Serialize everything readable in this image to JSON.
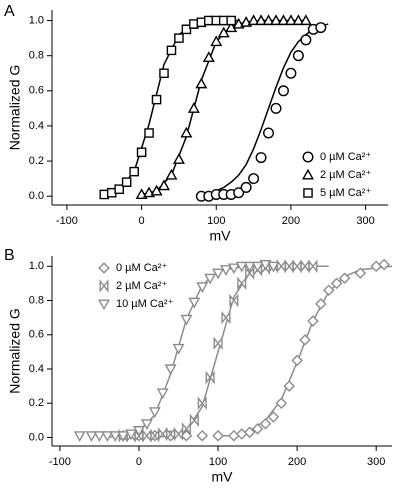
{
  "chart_data": [
    {
      "type": "scatter",
      "panel": "A",
      "xlabel": "mV",
      "ylabel": "Normalized G",
      "xlim": [
        -120,
        330
      ],
      "xticks": [
        -100,
        0,
        100,
        200,
        300
      ],
      "ylim": [
        -0.05,
        1.06
      ],
      "yticks": [
        {
          "value": 0,
          "label": "0.0"
        },
        {
          "value": 0.2,
          "label": "0.2"
        },
        {
          "value": 0.4,
          "label": "0.4"
        },
        {
          "value": 0.6,
          "label": "0.6"
        },
        {
          "value": 0.8,
          "label": "0.8"
        },
        {
          "value": 1,
          "label": "1.0"
        }
      ],
      "legend": "lower right",
      "series": [
        {
          "name": "0 µM Ca²⁺",
          "marker": "circle",
          "color": "#000000",
          "x": [
            80,
            90,
            100,
            110,
            120,
            130,
            140,
            150,
            160,
            170,
            180,
            190,
            200,
            210,
            220,
            230,
            240
          ],
          "values": [
            0.0,
            0.0,
            0.01,
            0.01,
            0.01,
            0.02,
            0.05,
            0.1,
            0.22,
            0.36,
            0.5,
            0.6,
            0.7,
            0.8,
            0.89,
            0.95,
            0.96
          ]
        },
        {
          "name": "2 µM Ca²⁺",
          "marker": "triangle",
          "color": "#000000",
          "x": [
            0,
            10,
            20,
            30,
            40,
            50,
            60,
            70,
            80,
            90,
            100,
            110,
            120,
            130,
            140,
            150,
            160,
            170,
            180,
            190,
            200,
            210,
            220
          ],
          "values": [
            0.01,
            0.02,
            0.03,
            0.06,
            0.12,
            0.21,
            0.36,
            0.5,
            0.64,
            0.79,
            0.88,
            0.93,
            0.96,
            0.98,
            0.99,
            1.0,
            1.0,
            1.0,
            1.0,
            1.0,
            1.0,
            1.0,
            1.0
          ]
        },
        {
          "name": "5 µM Ca²⁺",
          "marker": "square",
          "color": "#000000",
          "x": [
            -50,
            -40,
            -30,
            -20,
            -10,
            0,
            10,
            20,
            30,
            40,
            50,
            60,
            70,
            80,
            90,
            100,
            110,
            120
          ],
          "values": [
            0.01,
            0.02,
            0.04,
            0.08,
            0.14,
            0.25,
            0.36,
            0.55,
            0.7,
            0.83,
            0.9,
            0.95,
            0.98,
            0.99,
            1.0,
            1.0,
            1.0,
            1.0
          ]
        }
      ],
      "fits": [
        {
          "color": "#000000",
          "x": [
            100,
            110,
            120,
            130,
            140,
            150,
            160,
            170,
            180,
            190,
            200,
            210,
            220,
            230,
            240,
            250
          ],
          "values": [
            0.03,
            0.05,
            0.08,
            0.12,
            0.18,
            0.27,
            0.38,
            0.5,
            0.62,
            0.73,
            0.82,
            0.88,
            0.92,
            0.95,
            0.97,
            0.98
          ]
        },
        {
          "color": "#000000",
          "x": [
            0,
            20,
            40,
            60,
            80,
            100,
            120,
            140,
            160,
            180,
            200,
            220
          ],
          "values": [
            0.01,
            0.03,
            0.12,
            0.34,
            0.66,
            0.88,
            0.97,
            0.99,
            1.0,
            1.0,
            1.0,
            1.0
          ]
        },
        {
          "color": "#000000",
          "x": [
            -50,
            -30,
            -10,
            10,
            30,
            50,
            70,
            90,
            110,
            130
          ],
          "values": [
            0.01,
            0.04,
            0.14,
            0.41,
            0.75,
            0.92,
            0.98,
            1.0,
            1.0,
            1.0
          ]
        }
      ]
    },
    {
      "type": "scatter",
      "panel": "B",
      "xlabel": "mV",
      "ylabel": "Normalized G",
      "xlim": [
        -110,
        320
      ],
      "xticks": [
        -100,
        0,
        100,
        200,
        300
      ],
      "ylim": [
        -0.05,
        1.06
      ],
      "yticks": [
        {
          "value": 0,
          "label": "0.0"
        },
        {
          "value": 0.2,
          "label": "0.2"
        },
        {
          "value": 0.4,
          "label": "0.4"
        },
        {
          "value": 0.6,
          "label": "0.6"
        },
        {
          "value": 0.8,
          "label": "0.8"
        },
        {
          "value": 1,
          "label": "1.0"
        }
      ],
      "legend": "upper left",
      "series": [
        {
          "name": "0 µM Ca²⁺",
          "marker": "diamond",
          "color": "#8c8c8c",
          "x": [
            -20,
            0,
            20,
            40,
            60,
            80,
            100,
            120,
            130,
            140,
            150,
            160,
            170,
            180,
            190,
            200,
            210,
            220,
            230,
            240,
            250,
            260,
            280,
            300,
            310
          ],
          "values": [
            0.01,
            0.01,
            0.01,
            0.01,
            0.01,
            0.01,
            0.01,
            0.01,
            0.02,
            0.03,
            0.05,
            0.08,
            0.12,
            0.2,
            0.3,
            0.45,
            0.57,
            0.68,
            0.78,
            0.86,
            0.9,
            0.93,
            0.96,
            1.0,
            1.01
          ]
        },
        {
          "name": "2 µM Ca²⁺",
          "marker": "bowtie",
          "color": "#8c8c8c",
          "x": [
            -20,
            -10,
            0,
            10,
            20,
            30,
            40,
            50,
            60,
            70,
            80,
            90,
            100,
            110,
            120,
            130,
            140,
            150,
            160,
            170,
            180,
            190,
            200,
            210,
            220
          ],
          "values": [
            0.01,
            0.01,
            0.01,
            0.01,
            0.01,
            0.02,
            0.02,
            0.02,
            0.05,
            0.1,
            0.2,
            0.35,
            0.55,
            0.7,
            0.8,
            0.9,
            0.96,
            0.98,
            0.99,
            1.0,
            1.0,
            1.0,
            1.0,
            1.0,
            1.0
          ]
        },
        {
          "name": "10 µM Ca²⁺",
          "marker": "triangle-down",
          "color": "#8c8c8c",
          "x": [
            -75,
            -60,
            -50,
            -40,
            -30,
            -20,
            -10,
            0,
            10,
            20,
            30,
            40,
            50,
            60,
            70,
            80,
            90,
            100,
            110,
            120,
            130,
            140,
            150,
            160,
            170
          ],
          "values": [
            0.01,
            0.01,
            0.01,
            0.01,
            0.01,
            0.01,
            0.02,
            0.04,
            0.08,
            0.15,
            0.26,
            0.4,
            0.52,
            0.69,
            0.79,
            0.88,
            0.93,
            0.96,
            0.98,
            0.99,
            1.0,
            1.0,
            1.0,
            1.01,
            1.0
          ]
        }
      ],
      "fits": [
        {
          "color": "#8c8c8c",
          "x": [
            100,
            120,
            140,
            160,
            180,
            200,
            220,
            240,
            260,
            280,
            300,
            320
          ],
          "values": [
            0.01,
            0.01,
            0.04,
            0.1,
            0.22,
            0.44,
            0.68,
            0.85,
            0.94,
            0.98,
            0.99,
            1.0
          ]
        },
        {
          "color": "#8c8c8c",
          "x": [
            20,
            40,
            60,
            80,
            100,
            120,
            140,
            160,
            180,
            200,
            220,
            240
          ],
          "values": [
            0.0,
            0.01,
            0.04,
            0.18,
            0.5,
            0.82,
            0.96,
            0.99,
            1.0,
            1.0,
            1.0,
            1.0
          ]
        },
        {
          "color": "#8c8c8c",
          "x": [
            -40,
            -20,
            0,
            20,
            40,
            60,
            80,
            100,
            120,
            140,
            160,
            180
          ],
          "values": [
            0.0,
            0.01,
            0.04,
            0.13,
            0.37,
            0.69,
            0.89,
            0.97,
            0.99,
            1.0,
            1.0,
            1.0
          ]
        }
      ]
    }
  ]
}
